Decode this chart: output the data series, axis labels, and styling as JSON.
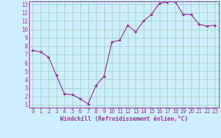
{
  "x": [
    0,
    1,
    2,
    3,
    4,
    5,
    6,
    7,
    8,
    9,
    10,
    11,
    12,
    13,
    14,
    15,
    16,
    17,
    18,
    19,
    20,
    21,
    22,
    23
  ],
  "y": [
    7.5,
    7.3,
    6.7,
    4.5,
    2.3,
    2.2,
    1.7,
    1.1,
    3.3,
    4.4,
    8.5,
    8.7,
    10.5,
    9.7,
    11.0,
    11.8,
    13.1,
    13.3,
    13.3,
    11.8,
    11.8,
    10.6,
    10.4,
    10.5
  ],
  "xlabel": "Windchill (Refroidissement éolien,°C)",
  "ylim_min": 1,
  "ylim_max": 13,
  "xlim_min": 0,
  "xlim_max": 23,
  "yticks": [
    1,
    2,
    3,
    4,
    5,
    6,
    7,
    8,
    9,
    10,
    11,
    12,
    13
  ],
  "xticks": [
    0,
    1,
    2,
    3,
    4,
    5,
    6,
    7,
    8,
    9,
    10,
    11,
    12,
    13,
    14,
    15,
    16,
    17,
    18,
    19,
    20,
    21,
    22,
    23
  ],
  "line_color": "#993399",
  "bg_color": "#cceeff",
  "grid_color": "#99ccbb",
  "marker": "D",
  "markersize": 1.8,
  "linewidth": 0.9,
  "tick_fontsize": 5.5,
  "xlabel_fontsize": 6.0
}
